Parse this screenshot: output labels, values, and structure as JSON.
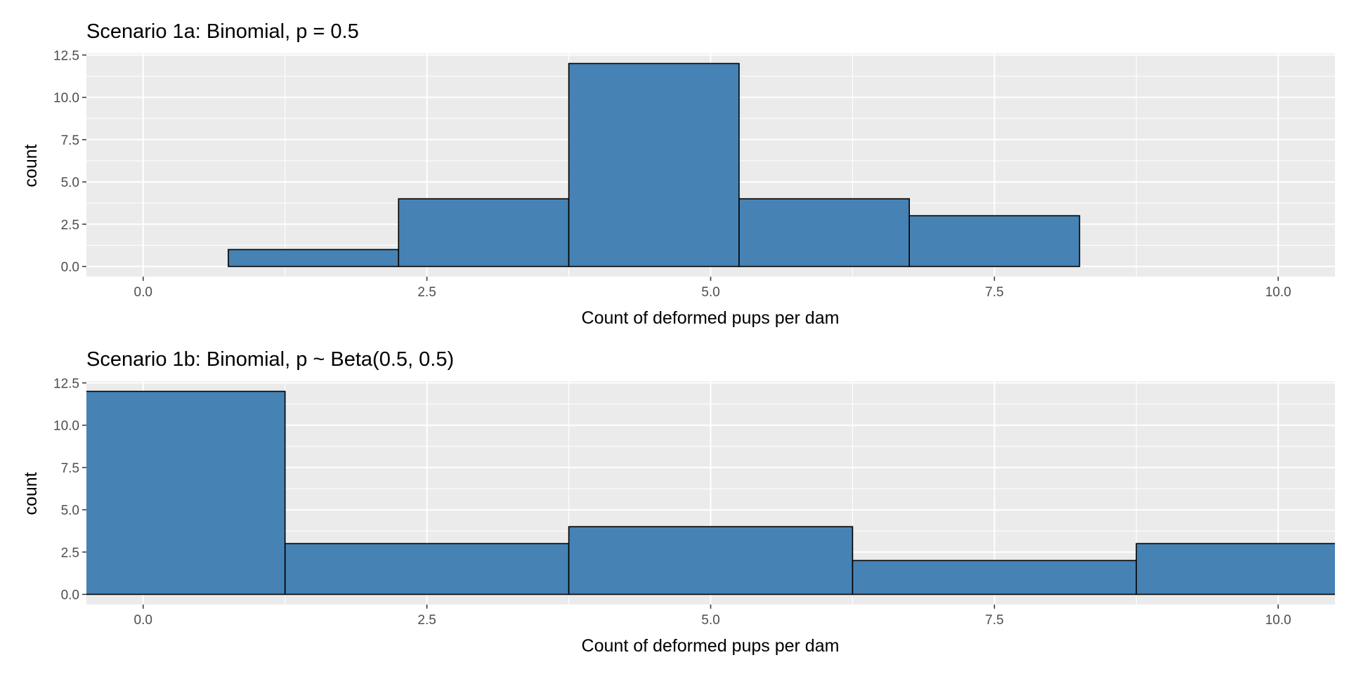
{
  "chart_data": [
    {
      "type": "bar",
      "title": "Scenario 1a: Binomial, p = 0.5",
      "xlabel": "Count of deformed pups per dam",
      "ylabel": "count",
      "xlim": [
        -0.5,
        10.5
      ],
      "ylim": [
        -0.6,
        12.6
      ],
      "x_ticks": [
        0.0,
        2.5,
        5.0,
        7.5,
        10.0
      ],
      "x_tick_labels": [
        "0.0",
        "2.5",
        "5.0",
        "7.5",
        "10.0"
      ],
      "y_ticks": [
        0.0,
        2.5,
        5.0,
        7.5,
        10.0,
        12.5
      ],
      "y_tick_labels": [
        "0.0",
        "2.5",
        "5.0",
        "7.5",
        "10.0",
        "12.5"
      ],
      "bins": [
        {
          "x_start": 0.75,
          "x_end": 2.25,
          "count": 1
        },
        {
          "x_start": 2.25,
          "x_end": 3.75,
          "count": 4
        },
        {
          "x_start": 3.75,
          "x_end": 5.25,
          "count": 12
        },
        {
          "x_start": 5.25,
          "x_end": 6.75,
          "count": 4
        },
        {
          "x_start": 6.75,
          "x_end": 8.25,
          "count": 3
        }
      ],
      "grid": true,
      "legend": "none",
      "bar_color": "#4682b4",
      "bar_outline_color": "#000000",
      "panel_background": "#ebebeb"
    },
    {
      "type": "bar",
      "title": "Scenario 1b: Binomial, p ~ Beta(0.5, 0.5)",
      "xlabel": "Count of deformed pups per dam",
      "ylabel": "count",
      "xlim": [
        -0.5,
        10.5
      ],
      "ylim": [
        -0.6,
        12.6
      ],
      "x_ticks": [
        0.0,
        2.5,
        5.0,
        7.5,
        10.0
      ],
      "x_tick_labels": [
        "0.0",
        "2.5",
        "5.0",
        "7.5",
        "10.0"
      ],
      "y_ticks": [
        0.0,
        2.5,
        5.0,
        7.5,
        10.0,
        12.5
      ],
      "y_tick_labels": [
        "0.0",
        "2.5",
        "5.0",
        "7.5",
        "10.0",
        "12.5"
      ],
      "bins": [
        {
          "x_start": -1.25,
          "x_end": 1.25,
          "count": 12
        },
        {
          "x_start": 1.25,
          "x_end": 3.75,
          "count": 3
        },
        {
          "x_start": 3.75,
          "x_end": 6.25,
          "count": 4
        },
        {
          "x_start": 6.25,
          "x_end": 8.75,
          "count": 2
        },
        {
          "x_start": 8.75,
          "x_end": 11.25,
          "count": 3
        }
      ],
      "grid": true,
      "legend": "none",
      "bar_color": "#4682b4",
      "bar_outline_color": "#000000",
      "panel_background": "#ebebeb"
    }
  ]
}
